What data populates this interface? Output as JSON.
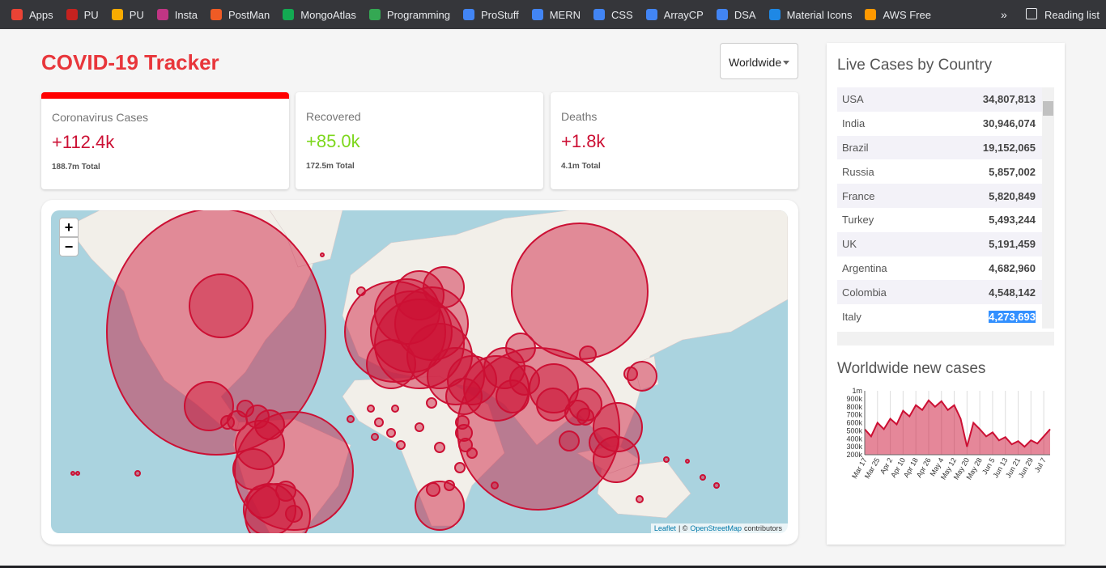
{
  "bookmarks": [
    "Apps",
    "PU",
    "PU",
    "Insta",
    "PostMan",
    "MongoAtlas",
    "Programming",
    "ProStuff",
    "MERN",
    "CSS",
    "ArrayCP",
    "DSA",
    "Material Icons",
    "AWS Free"
  ],
  "bookmarks_overflow": "»",
  "reading_list": "Reading list",
  "header": {
    "title": "COVID-19 Tracker",
    "country_select": "Worldwide"
  },
  "stats": [
    {
      "label": "Coronavirus Cases",
      "today": "+112.4k",
      "total": "188.7m Total"
    },
    {
      "label": "Recovered",
      "today": "+85.0k",
      "total": "172.5m Total"
    },
    {
      "label": "Deaths",
      "today": "+1.8k",
      "total": "4.1m Total"
    }
  ],
  "map": {
    "zoom_in": "+",
    "zoom_out": "−",
    "attribution": [
      "Leaflet",
      "| ©",
      "OpenStreetMap",
      "contributors"
    ]
  },
  "table": {
    "title": "Live Cases by Country",
    "rows": [
      [
        "USA",
        "34,807,813"
      ],
      [
        "India",
        "30,946,074"
      ],
      [
        "Brazil",
        "19,152,065"
      ],
      [
        "Russia",
        "5,857,002"
      ],
      [
        "France",
        "5,820,849"
      ],
      [
        "Turkey",
        "5,493,244"
      ],
      [
        "UK",
        "5,191,459"
      ],
      [
        "Argentina",
        "4,682,960"
      ],
      [
        "Colombia",
        "4,548,142"
      ],
      [
        "Italy",
        "4,273,693"
      ]
    ]
  },
  "new_cases_chart": {
    "type": "line",
    "title": "Worldwide new cases",
    "color": "#cc1034",
    "categories": [
      "Mar 17",
      null,
      "Mar 25",
      null,
      "Apr 2",
      null,
      "Apr 10",
      null,
      "Apr 18",
      null,
      "Apr 26",
      null,
      "May 4",
      null,
      "May 12",
      null,
      "May 20",
      null,
      "May 28",
      null,
      "Jun 5",
      null,
      "Jun 13",
      null,
      "Jun 21",
      null,
      "Jun 29",
      null,
      "Jul 7",
      null
    ],
    "values": [
      520000,
      430000,
      600000,
      520000,
      650000,
      580000,
      750000,
      680000,
      820000,
      760000,
      880000,
      800000,
      870000,
      760000,
      820000,
      650000,
      300000,
      600000,
      520000,
      430000,
      480000,
      380000,
      420000,
      330000,
      370000,
      300000,
      380000,
      340000,
      430000,
      520000
    ],
    "ylim": [
      200000,
      1000000
    ],
    "yticks": [
      {
        "value": 200000,
        "label": "200k"
      },
      {
        "value": 300000,
        "label": "300k"
      },
      {
        "value": 400000,
        "label": "400k"
      },
      {
        "value": 500000,
        "label": "500k"
      },
      {
        "value": 600000,
        "label": "600k"
      },
      {
        "value": 700000,
        "label": "700k"
      },
      {
        "value": 800000,
        "label": "800k"
      },
      {
        "value": 900000,
        "label": "900k"
      },
      {
        "value": 1000000,
        "label": "1m"
      }
    ]
  }
}
